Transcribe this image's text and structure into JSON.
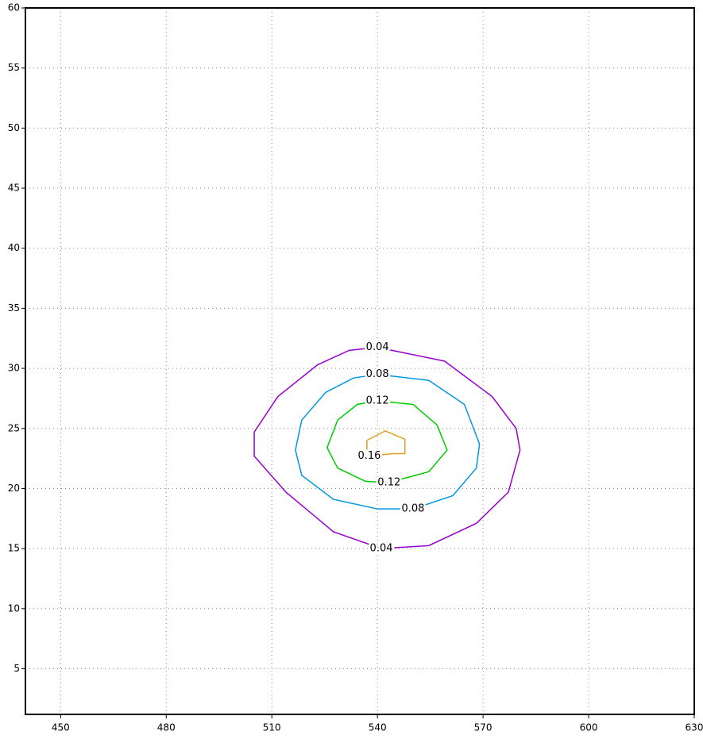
{
  "chart_data": {
    "type": "contour",
    "xlim": [
      440,
      630
    ],
    "xticks": [
      450,
      480,
      510,
      540,
      570,
      600,
      630
    ],
    "ylim": [
      1.2,
      60
    ],
    "yticks": [
      5,
      10,
      15,
      20,
      25,
      30,
      35,
      40,
      45,
      50,
      55,
      60
    ],
    "grid": true,
    "series": [
      {
        "name": "0.04",
        "color": "#9900cc",
        "x": [
          540,
          559.1,
          572.6,
          579.4,
          580.5,
          577.2,
          568.1,
          554.6,
          541.1,
          527.5,
          514,
          505,
          505,
          511.7,
          523,
          532,
          540
        ],
        "values": [
          31.75,
          30.6,
          27.65,
          25.0,
          23.2,
          19.7,
          17.1,
          15.25,
          15.0,
          16.4,
          19.7,
          22.7,
          24.7,
          27.65,
          30.3,
          31.5,
          31.75
        ]
      },
      {
        "name": "0.08",
        "color": "#0099dd",
        "x": [
          540,
          554.6,
          564.7,
          569,
          568.1,
          561.4,
          550.1,
          540,
          527.5,
          518.5,
          516.7,
          518.5,
          525.3,
          533.2,
          540
        ],
        "values": [
          29.5,
          29.0,
          27.0,
          23.7,
          21.7,
          19.4,
          18.3,
          18.3,
          19.1,
          21.1,
          23.2,
          25.7,
          28.0,
          29.2,
          29.5
        ]
      },
      {
        "name": "0.12",
        "color": "#00cc00",
        "x": [
          540,
          550.1,
          556.9,
          559.8,
          554.6,
          543.3,
          536.6,
          528.7,
          525.7,
          528.7,
          534.3,
          540
        ],
        "values": [
          27.3,
          27.0,
          25.3,
          23.2,
          21.4,
          20.5,
          20.6,
          21.7,
          23.4,
          25.7,
          27.0,
          27.3
        ]
      },
      {
        "name": "0.16",
        "color": "#e0a020",
        "x": [
          537,
          542.2,
          547.8,
          547.8,
          544.4,
          537.7,
          537,
          537
        ],
        "values": [
          24.0,
          24.8,
          24.1,
          22.9,
          22.9,
          22.7,
          23.3,
          24.0
        ]
      }
    ]
  }
}
